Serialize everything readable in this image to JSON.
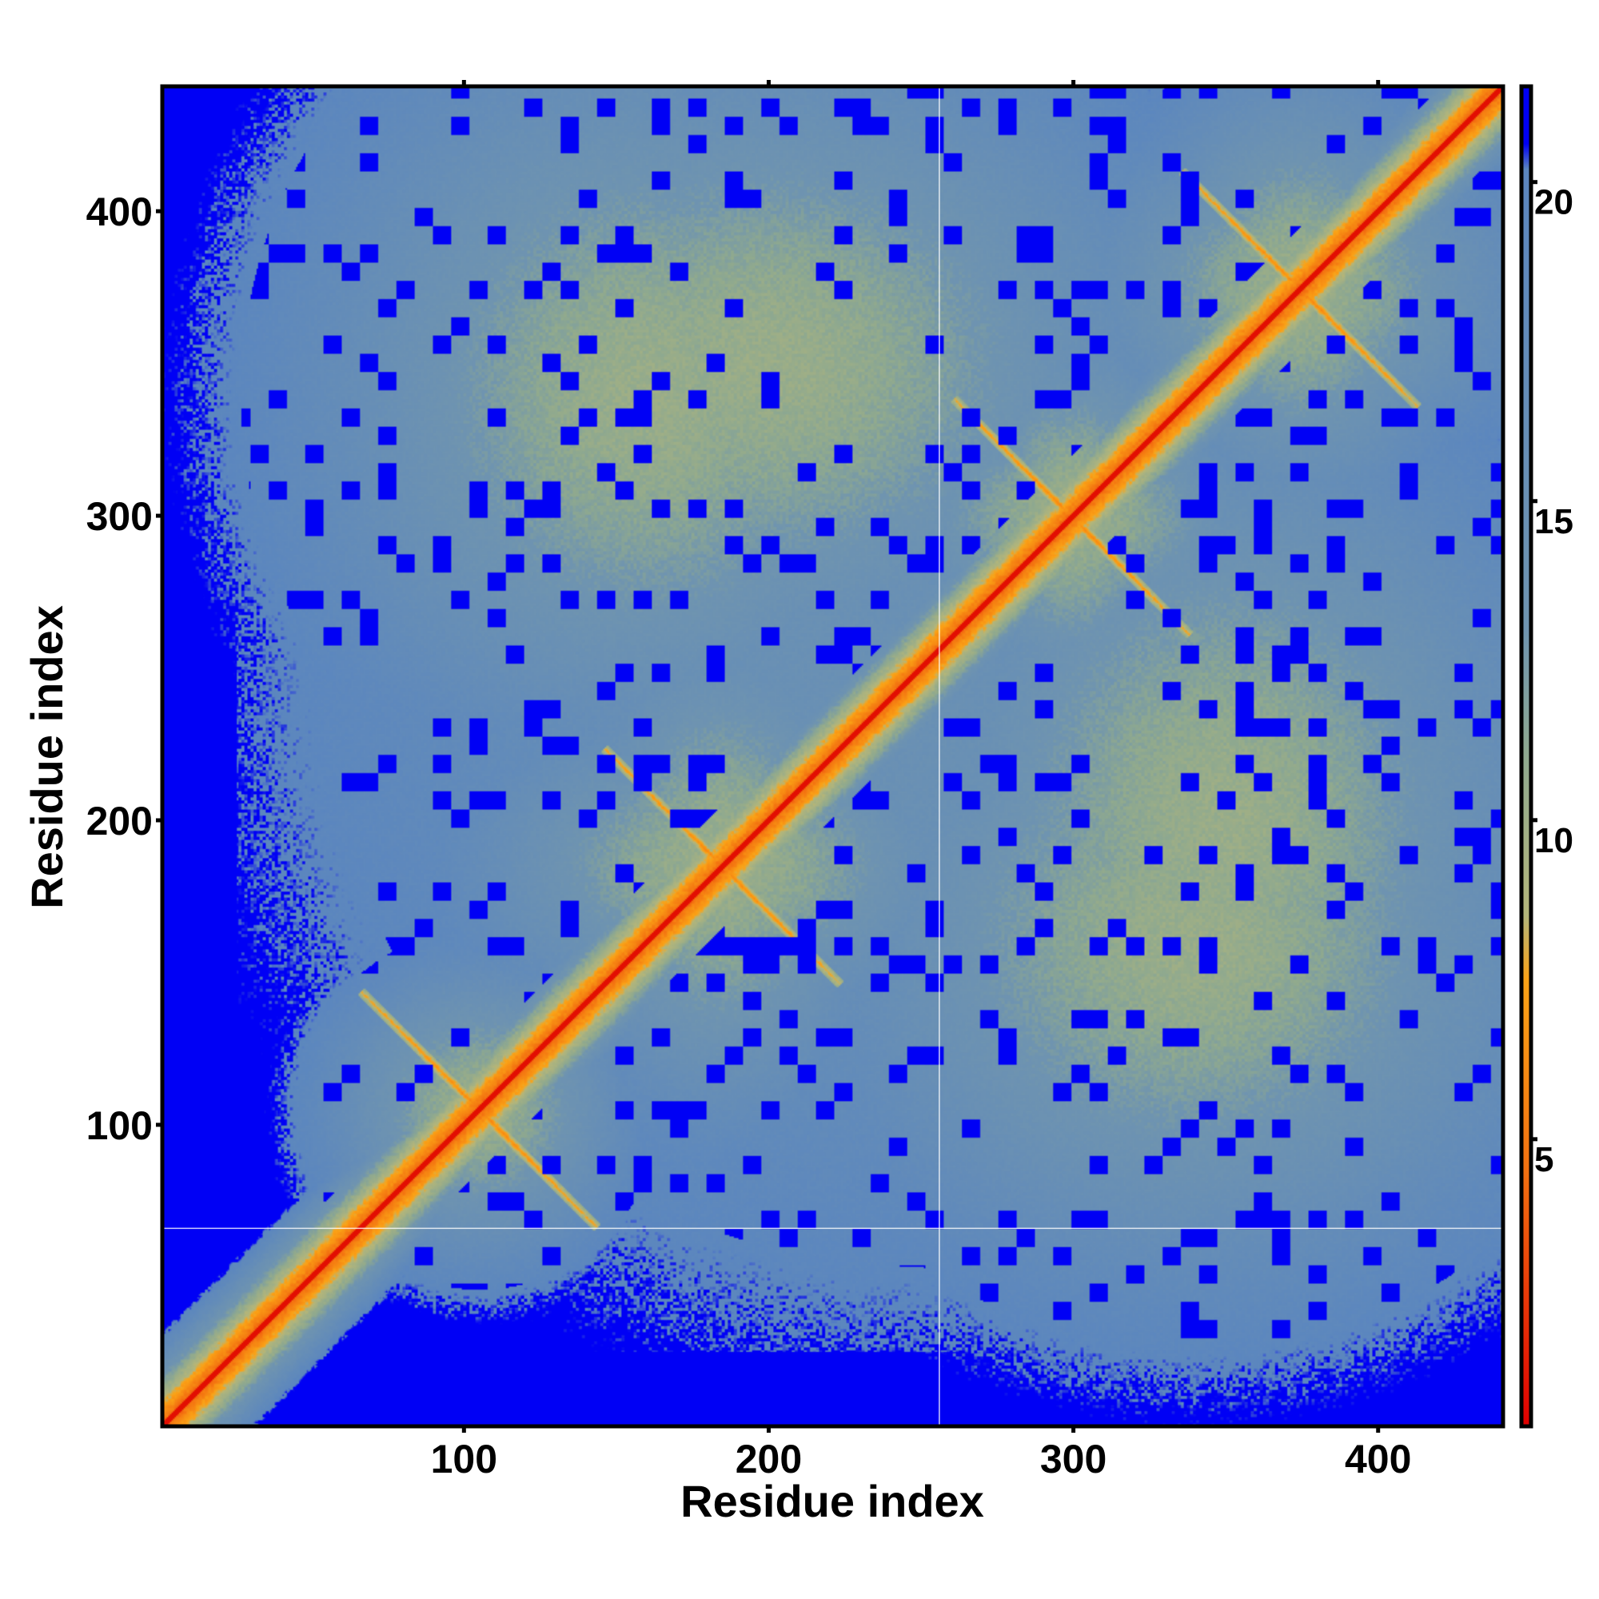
{
  "chart_data": {
    "type": "heatmap",
    "xlabel": "Residue index",
    "ylabel": "Residue index",
    "xlim": [
      1,
      441
    ],
    "ylim": [
      1,
      441
    ],
    "x_ticks": [
      100,
      200,
      300,
      400
    ],
    "y_ticks": [
      100,
      200,
      300,
      400
    ],
    "colorbar": {
      "ticks": [
        5,
        10,
        15,
        20
      ],
      "range": [
        0.5,
        21.5
      ],
      "stops": [
        {
          "value": 0.5,
          "color": "#e00000"
        },
        {
          "value": 4.5,
          "color": "#f37010"
        },
        {
          "value": 7.5,
          "color": "#fba316"
        },
        {
          "value": 8.5,
          "color": "#b4b67a"
        },
        {
          "value": 11,
          "color": "#8fa98f"
        },
        {
          "value": 13,
          "color": "#6f94b0"
        },
        {
          "value": 20.2,
          "color": "#5b86bf"
        },
        {
          "value": 20.6,
          "color": "#0000f5"
        },
        {
          "value": 21.5,
          "color": "#0000f5"
        }
      ]
    },
    "matrix": "symmetric inter-residue distance map; strong diagonal (distance near 0) with off-diagonal contact bands; background (large distances) blue",
    "domain_contacts": [
      {
        "x": [
          1,
          256
        ],
        "y": [
          1,
          256
        ]
      },
      {
        "x": [
          256,
          441
        ],
        "y": [
          256,
          441
        ]
      }
    ],
    "reference_lines": {
      "x": 256,
      "y": 66
    },
    "colors": {
      "background": "#0000f5",
      "mid_distance": "#5b86bf",
      "diagonal": "#e00000",
      "near_contact": "#fba316"
    }
  }
}
